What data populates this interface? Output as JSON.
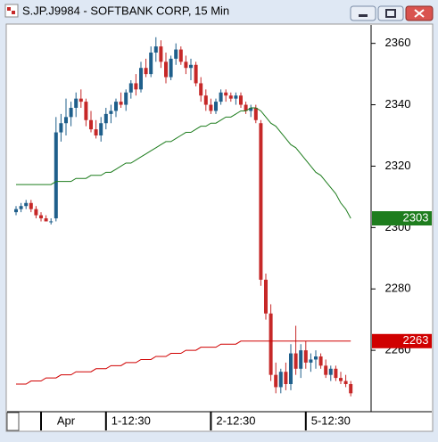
{
  "window_title": "S.JP.J9984 - SOFTBANK CORP, 15 Min",
  "chart_data": {
    "type": "candlestick",
    "categories": [
      null,
      null,
      null,
      null,
      null,
      null,
      null,
      null,
      null,
      null,
      "Apr",
      null,
      null,
      null,
      null,
      null,
      null,
      null,
      null,
      null,
      null,
      null,
      null,
      "1-12:30",
      null,
      null,
      null,
      null,
      null,
      null,
      null,
      null,
      null,
      null,
      null,
      null,
      null,
      null,
      null,
      null,
      null,
      null,
      null,
      null,
      "2-12:30",
      null,
      null,
      null,
      null,
      null,
      null,
      null,
      null,
      null,
      null,
      null,
      null,
      null,
      null,
      null,
      null,
      null,
      null,
      "5-12:30",
      null,
      null,
      null,
      null
    ],
    "open": [
      2305,
      2306,
      2307,
      2308,
      2306,
      2304,
      2303,
      2302,
      2303,
      2331,
      2334,
      2336,
      2339,
      2342,
      2341,
      2335,
      2332,
      2330,
      2334,
      2337,
      2338,
      2341,
      2340,
      2344,
      2347,
      2345,
      2352,
      2350,
      2357,
      2359,
      2354,
      2349,
      2355,
      2358,
      2354,
      2352,
      2353,
      2347,
      2343,
      2340,
      2338,
      2341,
      2344,
      2343,
      2342,
      2343,
      2340,
      2338,
      2339,
      2334,
      2283,
      2272,
      2252,
      2248,
      2253,
      2249,
      2259,
      2254,
      2260,
      2256,
      2257,
      2258,
      2255,
      2252,
      2254,
      2251,
      2250,
      2249
    ],
    "high": [
      2307,
      2308,
      2309,
      2309,
      2307,
      2305,
      2304,
      2303,
      2336,
      2337,
      2342,
      2341,
      2344,
      2345,
      2342,
      2338,
      2335,
      2336,
      2339,
      2340,
      2342,
      2344,
      2345,
      2348,
      2350,
      2354,
      2355,
      2359,
      2362,
      2361,
      2357,
      2356,
      2360,
      2359,
      2356,
      2355,
      2354,
      2349,
      2345,
      2342,
      2342,
      2345,
      2345,
      2344,
      2344,
      2344,
      2341,
      2340,
      2340,
      2335,
      2285,
      2275,
      2256,
      2254,
      2256,
      2262,
      2268,
      2262,
      2263,
      2259,
      2260,
      2259,
      2257,
      2255,
      2255,
      2253,
      2252,
      2250
    ],
    "low": [
      2304,
      2305,
      2306,
      2305,
      2303,
      2302,
      2302,
      2301,
      2302,
      2328,
      2330,
      2333,
      2336,
      2339,
      2333,
      2331,
      2329,
      2328,
      2332,
      2334,
      2336,
      2339,
      2338,
      2342,
      2343,
      2344,
      2349,
      2349,
      2354,
      2352,
      2347,
      2348,
      2353,
      2353,
      2350,
      2348,
      2346,
      2341,
      2338,
      2337,
      2337,
      2340,
      2341,
      2341,
      2340,
      2339,
      2337,
      2336,
      2334,
      2281,
      2270,
      2250,
      2246,
      2246,
      2247,
      2247,
      2252,
      2251,
      2254,
      2253,
      2254,
      2254,
      2251,
      2250,
      2250,
      2249,
      2248,
      2245
    ],
    "close": [
      2306,
      2307,
      2308,
      2306,
      2304,
      2303,
      2302,
      2302,
      2331,
      2334,
      2336,
      2339,
      2342,
      2341,
      2335,
      2332,
      2330,
      2334,
      2337,
      2338,
      2341,
      2340,
      2344,
      2347,
      2345,
      2352,
      2350,
      2357,
      2359,
      2354,
      2349,
      2355,
      2358,
      2354,
      2352,
      2353,
      2347,
      2343,
      2340,
      2338,
      2341,
      2344,
      2343,
      2342,
      2343,
      2340,
      2338,
      2339,
      2335,
      2283,
      2272,
      2252,
      2248,
      2253,
      2249,
      2259,
      2254,
      2260,
      2256,
      2257,
      2258,
      2255,
      2252,
      2254,
      2251,
      2250,
      2249,
      2246
    ],
    "up_color": "#1f5f8b",
    "down_color": "#c62828",
    "series": [
      {
        "color": "#1e7d1e",
        "values": [
          2314,
          2314,
          2314,
          2314,
          2314,
          2314,
          2314,
          2314,
          2315,
          2315,
          2315,
          2315,
          2316,
          2316,
          2316,
          2317,
          2317,
          2317,
          2318,
          2318,
          2319,
          2320,
          2321,
          2321,
          2322,
          2323,
          2324,
          2325,
          2326,
          2327,
          2328,
          2328,
          2329,
          2330,
          2331,
          2331,
          2332,
          2333,
          2333,
          2334,
          2334,
          2335,
          2336,
          2336,
          2337,
          2338,
          2338,
          2339,
          2339,
          2338,
          2336,
          2334,
          2333,
          2331,
          2329,
          2327,
          2326,
          2324,
          2322,
          2320,
          2318,
          2317,
          2315,
          2313,
          2311,
          2308,
          2306,
          2303
        ]
      },
      {
        "color": "#d00000",
        "values": [
          2249,
          2249,
          2249,
          2250,
          2250,
          2250,
          2251,
          2251,
          2251,
          2252,
          2252,
          2252,
          2253,
          2253,
          2253,
          2253,
          2254,
          2254,
          2254,
          2255,
          2255,
          2255,
          2256,
          2256,
          2256,
          2257,
          2257,
          2257,
          2258,
          2258,
          2258,
          2259,
          2259,
          2259,
          2260,
          2260,
          2260,
          2261,
          2261,
          2261,
          2261,
          2262,
          2262,
          2262,
          2262,
          2263,
          2263,
          2263,
          2263,
          2263,
          2263,
          2263,
          2263,
          2263,
          2263,
          2263,
          2263,
          2263,
          2263,
          2263,
          2263,
          2263,
          2263,
          2263,
          2263,
          2263,
          2263,
          2263
        ]
      }
    ],
    "ylim": [
      2240,
      2366
    ],
    "yticks": [
      2260,
      2280,
      2300,
      2320,
      2340,
      2360
    ],
    "grid": false
  }
}
